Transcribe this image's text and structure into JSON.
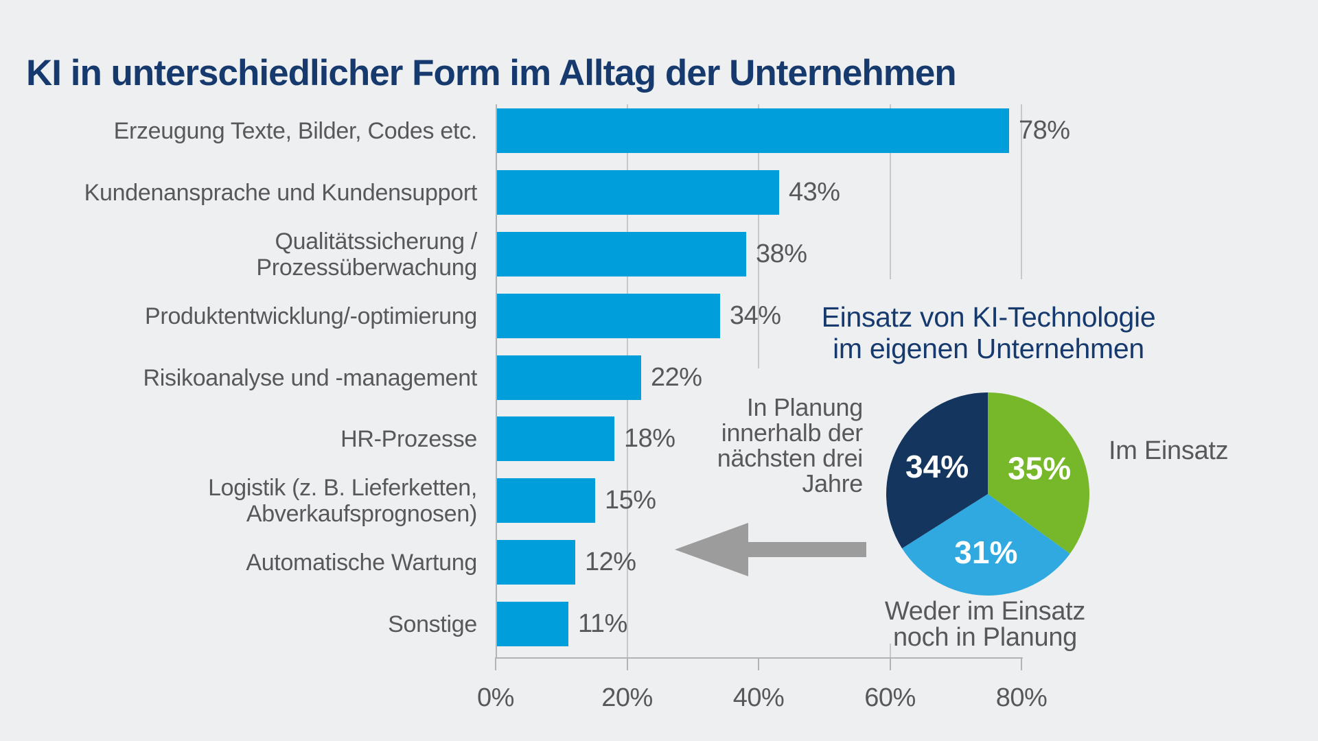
{
  "title": "KI in unterschiedlicher Form im Alltag der Unternehmen",
  "chart_data": [
    {
      "type": "bar",
      "orientation": "horizontal",
      "categories": [
        "Erzeugung Texte, Bilder, Codes etc.",
        "Kundenansprache und Kundensupport",
        "Qualitätssicherung /\nProzessüberwachung",
        "Produktentwicklung/-optimierung",
        "Risikoanalyse und -management",
        "HR-Prozesse",
        "Logistik (z. B. Lieferketten,\nAbverkaufsprognosen)",
        "Automatische Wartung",
        "Sonstige"
      ],
      "values": [
        78,
        43,
        38,
        34,
        22,
        18,
        15,
        12,
        11
      ],
      "unit": "%",
      "xlabel": "",
      "ylabel": "",
      "xlim": [
        0,
        80
      ],
      "ticks": [
        0,
        20,
        40,
        60,
        80
      ],
      "grid": true,
      "bar_color": "#009FDB"
    },
    {
      "type": "pie",
      "title": "Einsatz von KI-Technologie im eigenen Unternehmen",
      "start": "12 o'clock, clockwise",
      "slices": [
        {
          "label": "Im Einsatz",
          "value": 35,
          "color": "#76B82A"
        },
        {
          "label": "Weder im Einsatz noch in Planung",
          "value": 31,
          "color": "#2FA9E0"
        },
        {
          "label": "In Planung innerhalb der nächsten drei Jahre",
          "value": 34,
          "color": "#14355E"
        }
      ]
    }
  ],
  "pie_inset": {
    "title_line1": "Einsatz von KI-Technologie",
    "title_line2": "im eigenen Unternehmen",
    "caption_left": "In Planung\ninnerhalb der\nnächsten drei\nJahre",
    "caption_right": "Im Einsatz",
    "caption_bottom": "Weder im Einsatz\nnoch in Planung"
  },
  "colors": {
    "background": "#EDEFF0",
    "title_navy": "#163A6E",
    "bar_blue": "#009FDB",
    "pie_green": "#76B82A",
    "pie_blue": "#2FA9E0",
    "pie_navy": "#14355E",
    "text_gray": "#58585A",
    "axis_gray": "#B2B3B5",
    "grid_gray": "#C7C8CA",
    "arrow_gray": "#9C9C9C"
  }
}
